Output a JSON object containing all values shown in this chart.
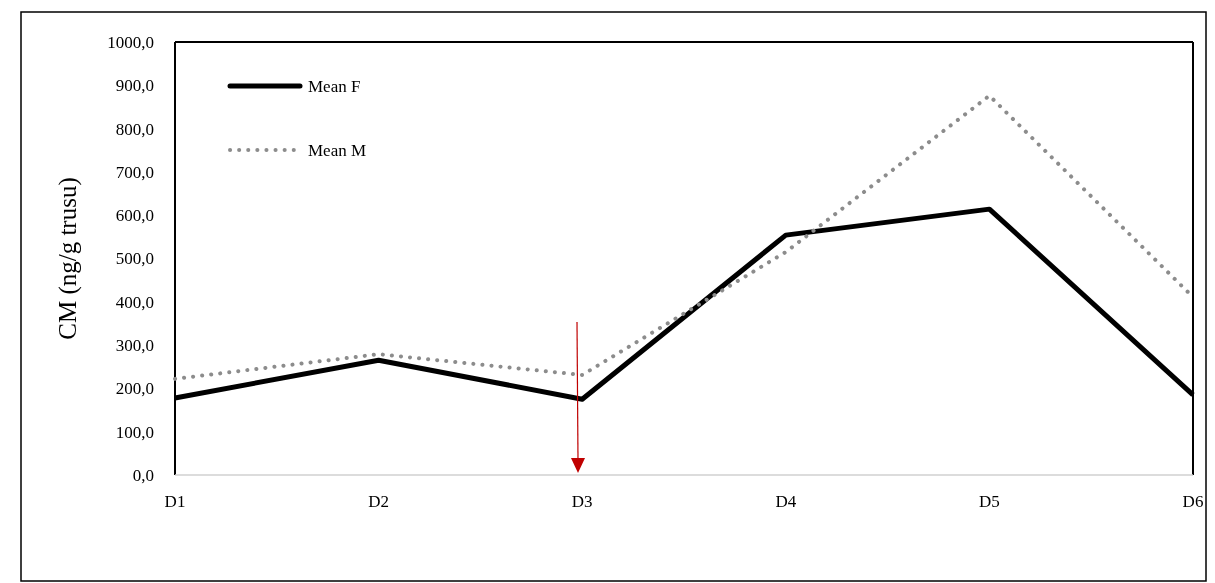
{
  "chart_data": {
    "type": "line",
    "ylabel": "CM (ng/g trusu)",
    "categories": [
      "D1",
      "D2",
      "D3",
      "D4",
      "D5",
      "D6"
    ],
    "series": [
      {
        "name": "Mean F",
        "color": "#000000",
        "line_style": "solid",
        "values": [
          178,
          265,
          175,
          554,
          614,
          185
        ]
      },
      {
        "name": "Mean M",
        "color": "#8c8c8c",
        "line_style": "dotted",
        "values": [
          222,
          279,
          231,
          515,
          876,
          411
        ]
      }
    ],
    "ylim": [
      0,
      1000
    ],
    "yticks": [
      {
        "value": 0,
        "label": "0,0"
      },
      {
        "value": 100,
        "label": "100,0"
      },
      {
        "value": 200,
        "label": "200,0"
      },
      {
        "value": 300,
        "label": "300,0"
      },
      {
        "value": 400,
        "label": "400,0"
      },
      {
        "value": 500,
        "label": "500,0"
      },
      {
        "value": 600,
        "label": "600,0"
      },
      {
        "value": 700,
        "label": "700,0"
      },
      {
        "value": 800,
        "label": "800,0"
      },
      {
        "value": 900,
        "label": "900,0"
      },
      {
        "value": 1000,
        "label": "1000,0"
      }
    ],
    "grid": false,
    "legend": "top left"
  }
}
